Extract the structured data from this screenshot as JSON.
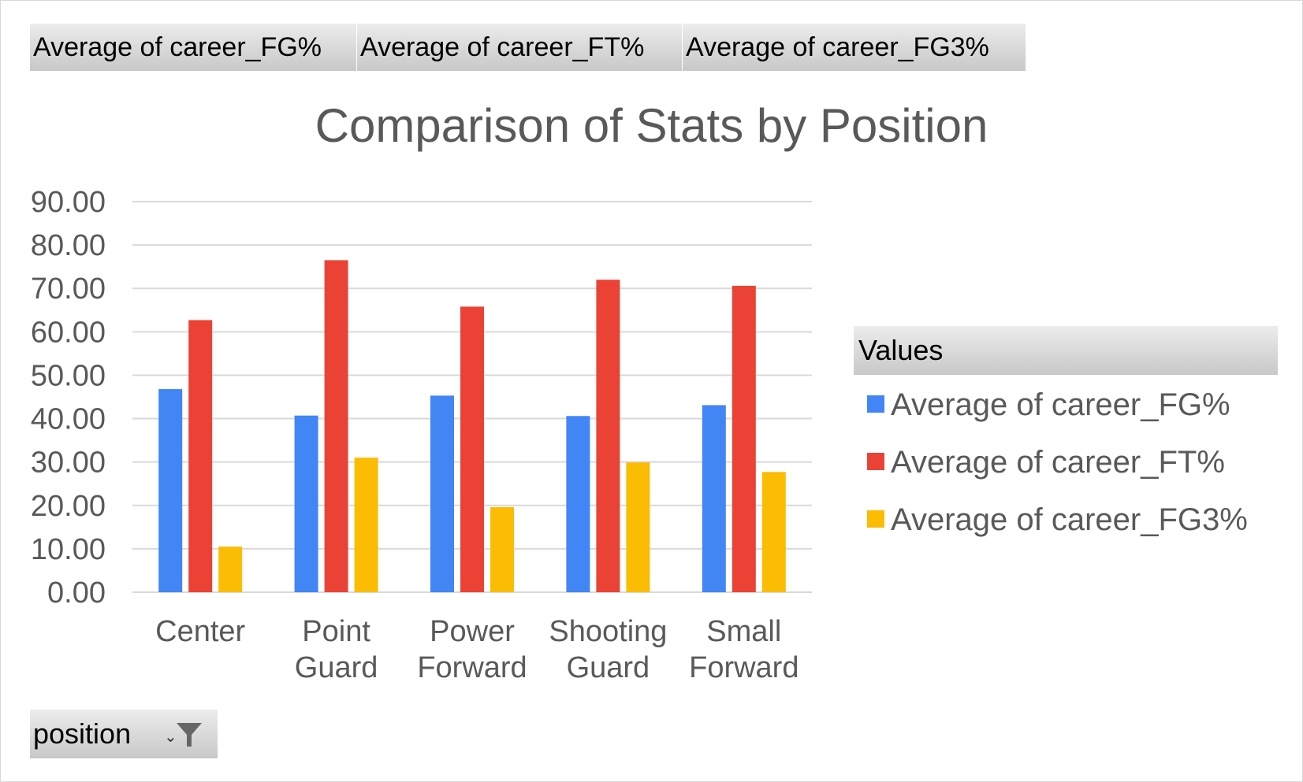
{
  "field_buttons": [
    "Average  of career_FG%",
    "Average  of career_FT%",
    "Average  of career_FG3%"
  ],
  "filter": {
    "label": "position",
    "dropdown_icon": "dropdown-arrow-icon",
    "funnel_icon": "filter-funnel-icon"
  },
  "legend": {
    "header": "Values"
  },
  "colors": {
    "fg": "#4285f4",
    "ft": "#ea4335",
    "fg3": "#fbbc04",
    "grid": "#d9d9d9",
    "text": "#595959"
  },
  "chart_data": {
    "type": "bar",
    "title": "Comparison of Stats by Position",
    "categories": [
      [
        "Center"
      ],
      [
        "Point",
        "Guard"
      ],
      [
        "Power",
        "Forward"
      ],
      [
        "Shooting",
        "Guard"
      ],
      [
        "Small",
        "Forward"
      ]
    ],
    "series": [
      {
        "name": "Average of career_FG%",
        "values": [
          46.8,
          40.7,
          45.3,
          40.6,
          43.1
        ]
      },
      {
        "name": "Average of career_FT%",
        "values": [
          62.7,
          76.5,
          65.8,
          72.0,
          70.6
        ]
      },
      {
        "name": "Average of career_FG3%",
        "values": [
          10.5,
          31.0,
          19.6,
          29.9,
          27.7
        ]
      }
    ],
    "yticks": [
      "0.00",
      "10.00",
      "20.00",
      "30.00",
      "40.00",
      "50.00",
      "60.00",
      "70.00",
      "80.00",
      "90.00"
    ],
    "ylim": [
      0,
      90
    ],
    "grid": true,
    "legend_position": "right"
  }
}
